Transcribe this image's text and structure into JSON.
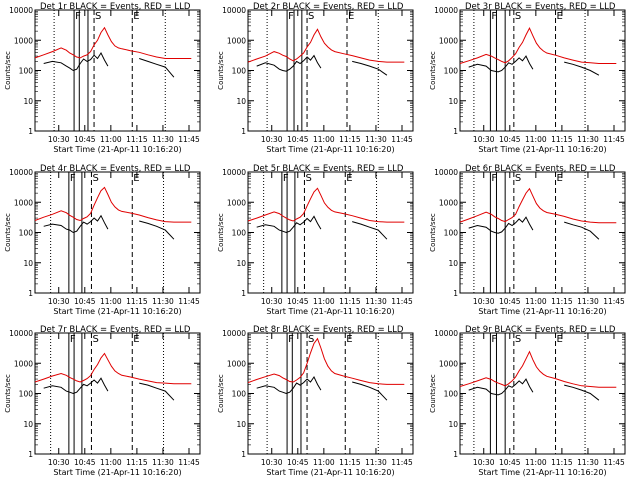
{
  "figure": {
    "y_axis_label": "Counts/sec",
    "x_axis_label": "Start Time (21-Apr-11 10:16:20)",
    "x_tick_labels": [
      "10:30",
      "10:45",
      "11:00",
      "11:15",
      "11:30",
      "11:45"
    ],
    "y_tick_labels": [
      "1",
      "10",
      "100",
      "1000",
      "10000"
    ],
    "marker_labels": [
      "F",
      "S",
      "E"
    ],
    "series_colors": {
      "events": "#000000",
      "lld": "#e00000"
    }
  },
  "chart_data": [
    {
      "type": "line",
      "title": "Det 1r BLACK = Events, RED = LLD",
      "xlabel": "Start Time (21-Apr-11 10:16:20)",
      "ylabel": "Counts/sec",
      "x_unit": "minutes after 10:16:20",
      "xlim": [
        0,
        95
      ],
      "ylim": [
        1,
        10000
      ],
      "y_scale": "log",
      "x": [
        0,
        5,
        10,
        15,
        18,
        20,
        22,
        24,
        26,
        28,
        30,
        32,
        34,
        36,
        38,
        40,
        42,
        44,
        46,
        48,
        50,
        55,
        60,
        65,
        70,
        75,
        80,
        85,
        90
      ],
      "series": [
        {
          "name": "Events",
          "color": "#000000",
          "values": [
            null,
            170,
            200,
            180,
            140,
            120,
            100,
            110,
            170,
            240,
            200,
            230,
            320,
            250,
            380,
            220,
            140,
            null,
            null,
            null,
            null,
            null,
            250,
            200,
            160,
            130,
            60,
            null,
            null
          ]
        },
        {
          "name": "LLD",
          "color": "#e00000",
          "values": [
            260,
            330,
            420,
            560,
            470,
            380,
            330,
            280,
            260,
            300,
            330,
            420,
            700,
            1000,
            1800,
            2600,
            1500,
            900,
            650,
            560,
            520,
            450,
            400,
            330,
            280,
            250,
            250,
            250,
            250
          ]
        }
      ],
      "vlines_solid": [
        22.5,
        25.5,
        30.5
      ],
      "vlines_dashed": [
        34,
        56
      ],
      "vlines_dotted": [
        11,
        75
      ]
    },
    {
      "type": "line",
      "title": "Det 2r BLACK = Events, RED = LLD",
      "xlabel": "Start Time (21-Apr-11 10:16:20)",
      "ylabel": "Counts/sec",
      "x_unit": "minutes after 10:16:20",
      "xlim": [
        0,
        95
      ],
      "ylim": [
        1,
        10000
      ],
      "y_scale": "log",
      "x": [
        0,
        5,
        10,
        15,
        18,
        20,
        22,
        24,
        26,
        28,
        30,
        32,
        34,
        36,
        38,
        40,
        42,
        44,
        46,
        48,
        50,
        55,
        60,
        65,
        70,
        75,
        80,
        85,
        90
      ],
      "series": [
        {
          "name": "Events",
          "color": "#000000",
          "values": [
            null,
            140,
            180,
            150,
            110,
            100,
            95,
            110,
            140,
            200,
            170,
            210,
            280,
            220,
            310,
            180,
            120,
            null,
            null,
            null,
            null,
            null,
            200,
            170,
            140,
            110,
            70,
            null,
            null
          ]
        },
        {
          "name": "LLD",
          "color": "#e00000",
          "values": [
            190,
            240,
            300,
            420,
            370,
            320,
            290,
            240,
            210,
            240,
            300,
            380,
            600,
            850,
            1500,
            2300,
            1300,
            800,
            600,
            480,
            420,
            360,
            310,
            260,
            220,
            200,
            190,
            190,
            190
          ]
        }
      ],
      "vlines_solid": [
        22.5,
        26.5,
        31
      ],
      "vlines_dashed": [
        34,
        57
      ],
      "vlines_dotted": [
        11,
        75
      ]
    },
    {
      "type": "line",
      "title": "Det 3r BLACK = Events, RED = LLD",
      "xlabel": "Start Time (21-Apr-11 10:16:20)",
      "ylabel": "Counts/sec",
      "x_unit": "minutes after 10:16:20",
      "xlim": [
        0,
        95
      ],
      "ylim": [
        1,
        10000
      ],
      "y_scale": "log",
      "x": [
        0,
        5,
        10,
        15,
        18,
        20,
        22,
        24,
        26,
        28,
        30,
        32,
        34,
        36,
        38,
        40,
        42,
        44,
        46,
        48,
        50,
        55,
        60,
        65,
        70,
        75,
        80,
        85,
        90
      ],
      "series": [
        {
          "name": "Events",
          "color": "#000000",
          "values": [
            null,
            130,
            160,
            140,
            100,
            95,
            90,
            100,
            130,
            180,
            160,
            200,
            260,
            210,
            300,
            170,
            110,
            null,
            null,
            null,
            null,
            null,
            190,
            160,
            130,
            100,
            70,
            null,
            null
          ]
        },
        {
          "name": "LLD",
          "color": "#e00000",
          "values": [
            170,
            210,
            260,
            340,
            300,
            260,
            230,
            200,
            180,
            210,
            270,
            360,
            580,
            850,
            1500,
            2500,
            1400,
            800,
            560,
            440,
            380,
            320,
            260,
            220,
            190,
            180,
            170,
            170,
            170
          ]
        }
      ],
      "vlines_solid": [
        17.5,
        21,
        26
      ],
      "vlines_dashed": [
        31,
        55
      ],
      "vlines_dotted": [
        8,
        72
      ]
    },
    {
      "type": "line",
      "title": "Det 4r BLACK = Events, RED = LLD",
      "xlabel": "Start Time (21-Apr-11 10:16:20)",
      "ylabel": "Counts/sec",
      "x_unit": "minutes after 10:16:20",
      "xlim": [
        0,
        95
      ],
      "ylim": [
        1,
        10000
      ],
      "y_scale": "log",
      "x": [
        0,
        5,
        10,
        15,
        18,
        20,
        22,
        24,
        26,
        28,
        30,
        32,
        34,
        36,
        38,
        40,
        42,
        44,
        46,
        48,
        50,
        55,
        60,
        65,
        70,
        75,
        80,
        85,
        90
      ],
      "series": [
        {
          "name": "Events",
          "color": "#000000",
          "values": [
            null,
            160,
            190,
            170,
            130,
            120,
            100,
            110,
            160,
            220,
            190,
            230,
            300,
            240,
            360,
            210,
            130,
            null,
            null,
            null,
            null,
            null,
            240,
            200,
            160,
            120,
            60,
            null,
            null
          ]
        },
        {
          "name": "LLD",
          "color": "#e00000",
          "values": [
            250,
            320,
            400,
            520,
            450,
            370,
            320,
            270,
            250,
            290,
            330,
            430,
            800,
            1400,
            2400,
            3100,
            1800,
            1000,
            700,
            560,
            500,
            440,
            380,
            310,
            260,
            230,
            220,
            220,
            220
          ]
        }
      ],
      "vlines_solid": [
        19.5,
        22.5,
        27
      ],
      "vlines_dashed": [
        32.5,
        56
      ],
      "vlines_dotted": [
        9,
        74
      ]
    },
    {
      "type": "line",
      "title": "Det 5r BLACK = Events, RED = LLD",
      "xlabel": "Start Time (21-Apr-11 10:16:20)",
      "ylabel": "Counts/sec",
      "x_unit": "minutes after 10:16:20",
      "xlim": [
        0,
        95
      ],
      "ylim": [
        1,
        10000
      ],
      "y_scale": "log",
      "x": [
        0,
        5,
        10,
        15,
        18,
        20,
        22,
        24,
        26,
        28,
        30,
        32,
        34,
        36,
        38,
        40,
        42,
        44,
        46,
        48,
        50,
        55,
        60,
        65,
        70,
        75,
        80,
        85,
        90
      ],
      "series": [
        {
          "name": "Events",
          "color": "#000000",
          "values": [
            null,
            150,
            180,
            160,
            120,
            110,
            100,
            110,
            150,
            210,
            180,
            220,
            290,
            230,
            340,
            200,
            130,
            null,
            null,
            null,
            null,
            null,
            230,
            190,
            150,
            120,
            60,
            null,
            null
          ]
        },
        {
          "name": "LLD",
          "color": "#e00000",
          "values": [
            240,
            300,
            380,
            480,
            420,
            350,
            300,
            260,
            240,
            280,
            320,
            420,
            760,
            1300,
            2200,
            2900,
            1700,
            950,
            680,
            540,
            480,
            420,
            360,
            300,
            250,
            230,
            220,
            220,
            220
          ]
        }
      ],
      "vlines_solid": [
        19.5,
        22.5,
        27
      ],
      "vlines_dashed": [
        32.5,
        56
      ],
      "vlines_dotted": [
        9,
        74
      ]
    },
    {
      "type": "line",
      "title": "Det 6r BLACK = Events, RED = LLD",
      "xlabel": "Start Time (21-Apr-11 10:16:20)",
      "ylabel": "Counts/sec",
      "x_unit": "minutes after 10:16:20",
      "xlim": [
        0,
        95
      ],
      "ylim": [
        1,
        10000
      ],
      "y_scale": "log",
      "x": [
        0,
        5,
        10,
        15,
        18,
        20,
        22,
        24,
        26,
        28,
        30,
        32,
        34,
        36,
        38,
        40,
        42,
        44,
        46,
        48,
        50,
        55,
        60,
        65,
        70,
        75,
        80,
        85,
        90
      ],
      "series": [
        {
          "name": "Events",
          "color": "#000000",
          "values": [
            null,
            140,
            170,
            150,
            110,
            100,
            95,
            105,
            140,
            200,
            170,
            210,
            280,
            220,
            320,
            190,
            120,
            null,
            null,
            null,
            null,
            null,
            220,
            180,
            150,
            110,
            60,
            null,
            null
          ]
        },
        {
          "name": "LLD",
          "color": "#e00000",
          "values": [
            220,
            280,
            360,
            470,
            400,
            330,
            290,
            250,
            230,
            270,
            310,
            400,
            720,
            1200,
            2000,
            2800,
            1600,
            900,
            640,
            520,
            460,
            400,
            340,
            280,
            240,
            220,
            210,
            210,
            210
          ]
        }
      ],
      "vlines_solid": [
        17.5,
        21,
        26
      ],
      "vlines_dashed": [
        31,
        55
      ],
      "vlines_dotted": [
        8,
        72
      ]
    },
    {
      "type": "line",
      "title": "Det 7r BLACK = Events, RED = LLD",
      "xlabel": "Start Time (21-Apr-11 10:16:20)",
      "ylabel": "Counts/sec",
      "x_unit": "minutes after 10:16:20",
      "xlim": [
        0,
        95
      ],
      "ylim": [
        1,
        10000
      ],
      "y_scale": "log",
      "x": [
        0,
        5,
        10,
        15,
        18,
        20,
        22,
        24,
        26,
        28,
        30,
        32,
        34,
        36,
        38,
        40,
        42,
        44,
        46,
        48,
        50,
        55,
        60,
        65,
        70,
        75,
        80,
        85,
        90
      ],
      "series": [
        {
          "name": "Events",
          "color": "#000000",
          "values": [
            null,
            150,
            180,
            160,
            120,
            110,
            100,
            110,
            150,
            200,
            180,
            220,
            280,
            220,
            320,
            190,
            120,
            null,
            null,
            null,
            null,
            null,
            220,
            190,
            150,
            120,
            60,
            null,
            null
          ]
        },
        {
          "name": "LLD",
          "color": "#e00000",
          "values": [
            240,
            300,
            380,
            460,
            400,
            340,
            300,
            260,
            240,
            270,
            310,
            390,
            620,
            900,
            1500,
            2100,
            1300,
            800,
            560,
            460,
            400,
            350,
            300,
            260,
            230,
            220,
            210,
            210,
            210
          ]
        }
      ],
      "vlines_solid": [
        19.5,
        22.5,
        27
      ],
      "vlines_dashed": [
        32.5,
        56
      ],
      "vlines_dotted": [
        9,
        74
      ]
    },
    {
      "type": "line",
      "title": "Det 8r BLACK = Events, RED = LLD",
      "xlabel": "Start Time (21-Apr-11 10:16:20)",
      "ylabel": "Counts/sec",
      "x_unit": "minutes after 10:16:20",
      "xlim": [
        0,
        95
      ],
      "ylim": [
        1,
        10000
      ],
      "y_scale": "log",
      "x": [
        0,
        5,
        10,
        15,
        18,
        20,
        22,
        24,
        26,
        28,
        30,
        32,
        34,
        36,
        38,
        40,
        42,
        44,
        46,
        48,
        50,
        55,
        60,
        65,
        70,
        75,
        80,
        85,
        90
      ],
      "series": [
        {
          "name": "Events",
          "color": "#000000",
          "values": [
            null,
            150,
            180,
            160,
            120,
            110,
            100,
            110,
            150,
            220,
            190,
            230,
            300,
            240,
            350,
            200,
            130,
            null,
            null,
            null,
            null,
            null,
            240,
            200,
            160,
            120,
            60,
            null,
            null
          ]
        },
        {
          "name": "LLD",
          "color": "#e00000",
          "values": [
            230,
            290,
            360,
            440,
            390,
            330,
            290,
            250,
            240,
            280,
            340,
            480,
            1000,
            2200,
            4500,
            6500,
            3200,
            1400,
            800,
            560,
            460,
            380,
            320,
            270,
            230,
            210,
            200,
            200,
            200
          ]
        }
      ],
      "vlines_solid": [
        22.5,
        25.5,
        30.5
      ],
      "vlines_dashed": [
        34,
        56
      ],
      "vlines_dotted": [
        11,
        75
      ]
    },
    {
      "type": "line",
      "title": "Det 9r BLACK = Events, RED = LLD",
      "xlabel": "Start Time (21-Apr-11 10:16:20)",
      "ylabel": "Counts/sec",
      "x_unit": "minutes after 10:16:20",
      "xlim": [
        0,
        95
      ],
      "ylim": [
        1,
        10000
      ],
      "y_scale": "log",
      "x": [
        0,
        5,
        10,
        15,
        18,
        20,
        22,
        24,
        26,
        28,
        30,
        32,
        34,
        36,
        38,
        40,
        42,
        44,
        46,
        48,
        50,
        55,
        60,
        65,
        70,
        75,
        80,
        85,
        90
      ],
      "series": [
        {
          "name": "Events",
          "color": "#000000",
          "values": [
            null,
            130,
            160,
            140,
            100,
            95,
            90,
            100,
            130,
            180,
            160,
            200,
            260,
            210,
            300,
            170,
            110,
            null,
            null,
            null,
            null,
            null,
            190,
            160,
            130,
            100,
            60,
            null,
            null
          ]
        },
        {
          "name": "LLD",
          "color": "#e00000",
          "values": [
            170,
            210,
            260,
            330,
            290,
            250,
            220,
            200,
            180,
            210,
            260,
            350,
            560,
            820,
            1400,
            2400,
            1300,
            760,
            540,
            430,
            370,
            310,
            250,
            210,
            180,
            170,
            160,
            160,
            160
          ]
        }
      ],
      "vlines_solid": [
        17.5,
        21,
        26
      ],
      "vlines_dashed": [
        31,
        55
      ],
      "vlines_dotted": [
        8,
        72
      ]
    }
  ]
}
